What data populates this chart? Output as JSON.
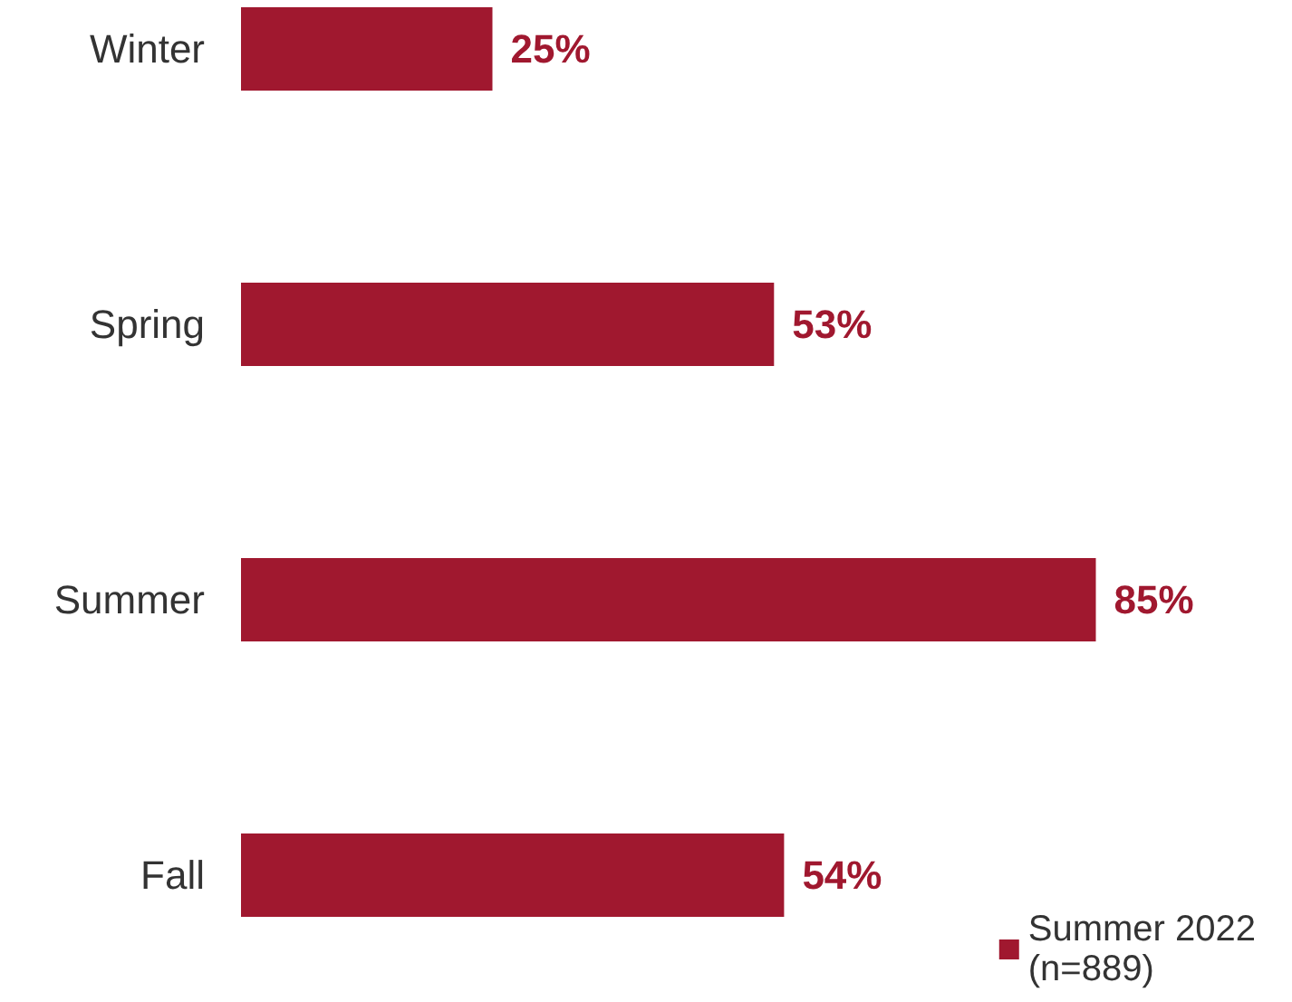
{
  "chart_data": {
    "type": "bar",
    "orientation": "horizontal",
    "categories": [
      "Winter",
      "Spring",
      "Summer",
      "Fall"
    ],
    "series": [
      {
        "name": "Summer 2022\n(n=889)",
        "color": "#a0182f",
        "values": [
          25,
          53,
          85,
          54
        ],
        "value_labels": [
          "25%",
          "53%",
          "85%",
          "54%"
        ]
      }
    ],
    "legend": "bottom right"
  }
}
